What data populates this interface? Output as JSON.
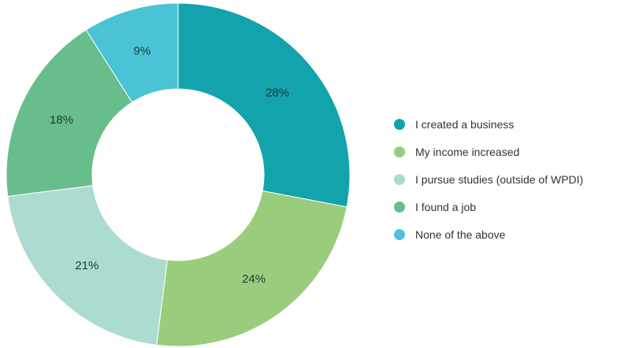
{
  "chart_data": {
    "type": "pie",
    "donut": true,
    "title": "",
    "categories": [
      "I created a business",
      "My income increased",
      "I pursue studies (outside of WPDI)",
      "I found a job",
      "None of the above"
    ],
    "values": [
      28,
      24,
      21,
      18,
      9
    ],
    "labels": [
      "28%",
      "24%",
      "21%",
      "18%",
      "9%"
    ],
    "colors": [
      "#12a3ac",
      "#99cd7c",
      "#acdbd2",
      "#68bd8d",
      "#4ac3d6"
    ],
    "legend_position": "right"
  }
}
